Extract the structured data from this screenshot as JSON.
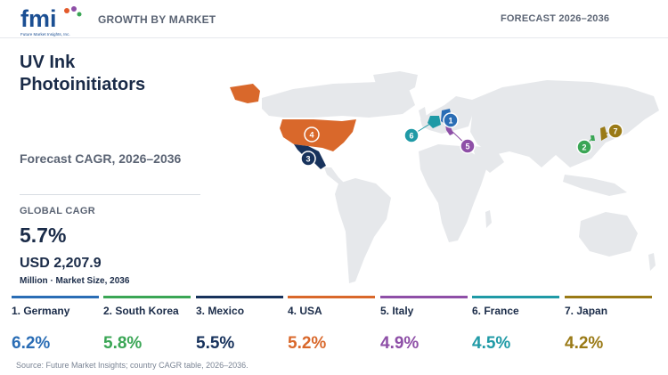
{
  "header": {
    "logo_text": "fmi",
    "logo_subtitle": "Future Market Insights, Inc.",
    "left_title": "GROWTH BY MARKET",
    "right_title": "FORECAST 2026–2036"
  },
  "summary": {
    "product": "UV Ink Photoinitiators",
    "cagr_range_label": "Forecast CAGR, 2026–2036",
    "global_cagr_label": "GLOBAL CAGR",
    "global_cagr_value": "5.7%",
    "market_size_value": "USD 2,207.9",
    "market_size_unit": "Million · Market Size, 2036"
  },
  "colors": {
    "germany": "#2a6db5",
    "south_korea": "#3aa655",
    "mexico": "#17325c",
    "usa": "#d9682b",
    "italy": "#8e4fa7",
    "france": "#1f9aa6",
    "japan": "#9a7a16",
    "land": "#e6e8eb"
  },
  "map": {
    "markers": [
      {
        "rank": "1",
        "country": "Germany",
        "color": "#2a6db5"
      },
      {
        "rank": "2",
        "country": "South Korea",
        "color": "#3aa655"
      },
      {
        "rank": "3",
        "country": "Mexico",
        "color": "#17325c"
      },
      {
        "rank": "4",
        "country": "USA",
        "color": "#d9682b"
      },
      {
        "rank": "5",
        "country": "Italy",
        "color": "#8e4fa7"
      },
      {
        "rank": "6",
        "country": "France",
        "color": "#1f9aa6"
      },
      {
        "rank": "7",
        "country": "Japan",
        "color": "#9a7a16"
      }
    ]
  },
  "countries": [
    {
      "label": "1. Germany",
      "cagr": "6.2%",
      "color": "#2a6db5"
    },
    {
      "label": "2. South Korea",
      "cagr": "5.8%",
      "color": "#3aa655"
    },
    {
      "label": "3. Mexico",
      "cagr": "5.5%",
      "color": "#17325c"
    },
    {
      "label": "4. USA",
      "cagr": "5.2%",
      "color": "#d9682b"
    },
    {
      "label": "5. Italy",
      "cagr": "4.9%",
      "color": "#8e4fa7"
    },
    {
      "label": "6. France",
      "cagr": "4.5%",
      "color": "#1f9aa6"
    },
    {
      "label": "7. Japan",
      "cagr": "4.2%",
      "color": "#9a7a16"
    }
  ],
  "source": "Source: Future Market Insights; country CAGR table, 2026–2036."
}
